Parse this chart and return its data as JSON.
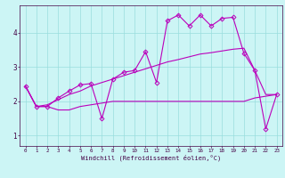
{
  "title": "",
  "xlabel": "Windchill (Refroidissement éolien,°C)",
  "background_color": "#ccf5f5",
  "grid_color": "#99dddd",
  "line_color": "#bb00bb",
  "xlim": [
    -0.5,
    23.5
  ],
  "ylim": [
    0.7,
    4.8
  ],
  "xticks": [
    0,
    1,
    2,
    3,
    4,
    5,
    6,
    7,
    8,
    9,
    10,
    11,
    12,
    13,
    14,
    15,
    16,
    17,
    18,
    19,
    20,
    21,
    22,
    23
  ],
  "yticks": [
    1,
    2,
    3,
    4
  ],
  "series": [
    {
      "x": [
        0,
        1,
        2,
        3,
        4,
        5,
        6,
        7,
        8,
        9,
        10,
        11,
        12,
        13,
        14,
        15,
        16,
        17,
        18,
        19,
        20,
        21,
        22,
        23
      ],
      "y": [
        2.45,
        1.85,
        1.85,
        1.75,
        1.75,
        1.85,
        1.9,
        1.95,
        2.0,
        2.0,
        2.0,
        2.0,
        2.0,
        2.0,
        2.0,
        2.0,
        2.0,
        2.0,
        2.0,
        2.0,
        2.0,
        2.1,
        2.15,
        2.2
      ],
      "marker": null,
      "linestyle": "-",
      "linewidth": 0.8,
      "dashed": false
    },
    {
      "x": [
        0,
        1,
        2,
        3,
        4,
        5,
        6,
        7,
        8,
        9,
        10,
        11,
        12,
        13,
        14,
        15,
        16,
        17,
        18,
        19,
        20,
        21,
        22,
        23
      ],
      "y": [
        2.45,
        1.85,
        1.9,
        2.05,
        2.2,
        2.3,
        2.45,
        2.55,
        2.65,
        2.75,
        2.85,
        2.95,
        3.05,
        3.15,
        3.22,
        3.3,
        3.38,
        3.42,
        3.47,
        3.52,
        3.55,
        2.9,
        2.2,
        2.2
      ],
      "marker": null,
      "linestyle": "-",
      "linewidth": 0.8,
      "dashed": false
    },
    {
      "x": [
        0,
        1,
        2,
        3,
        4,
        5,
        6,
        7,
        8,
        9,
        10,
        11,
        12,
        13,
        14,
        15,
        16,
        17,
        18,
        19,
        20,
        21,
        22,
        23
      ],
      "y": [
        2.45,
        1.85,
        1.85,
        2.1,
        2.3,
        2.48,
        2.52,
        1.5,
        2.65,
        2.85,
        2.9,
        3.45,
        2.55,
        4.35,
        4.52,
        4.2,
        4.52,
        4.2,
        4.42,
        4.45,
        3.4,
        2.9,
        1.2,
        2.2
      ],
      "marker": "D",
      "linestyle": "-",
      "linewidth": 0.8,
      "dashed": false
    }
  ]
}
